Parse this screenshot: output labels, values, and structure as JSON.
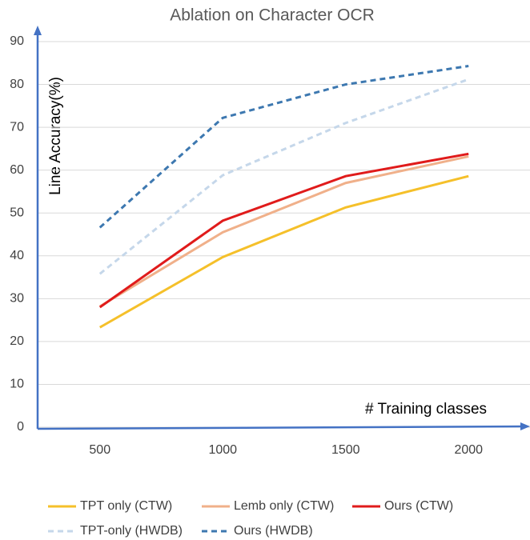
{
  "chart_data": {
    "type": "line",
    "title": "Ablation on Character OCR",
    "ylabel": "Line Accuracy(%)",
    "xlabel": "# Training classes",
    "categories": [
      "500",
      "1000",
      "1500",
      "2000"
    ],
    "ylim": [
      0,
      90
    ],
    "yticks": [
      0,
      10,
      20,
      30,
      40,
      50,
      60,
      70,
      80,
      90
    ],
    "grid": true,
    "series": [
      {
        "name": "TPT only (CTW)",
        "color": "#f5c02a",
        "line_style": "solid",
        "values": [
          23.3,
          39.7,
          51.3,
          58.6
        ]
      },
      {
        "name": "Lemb only (CTW)",
        "color": "#f0b08a",
        "line_style": "solid",
        "values": [
          28.2,
          45.5,
          57,
          63.2
        ]
      },
      {
        "name": "Ours (CTW)",
        "color": "#e01b1b",
        "line_style": "solid",
        "values": [
          28,
          48.2,
          58.6,
          63.8
        ]
      },
      {
        "name": "TPT-only (HWDB)",
        "color": "#c5d7ea",
        "line_style": "dashed",
        "values": [
          35.8,
          58.8,
          71,
          81.2
        ]
      },
      {
        "name": "Ours (HWDB)",
        "color": "#3d78b0",
        "line_style": "dashed",
        "values": [
          46.6,
          72.2,
          80,
          84.3
        ]
      }
    ]
  }
}
